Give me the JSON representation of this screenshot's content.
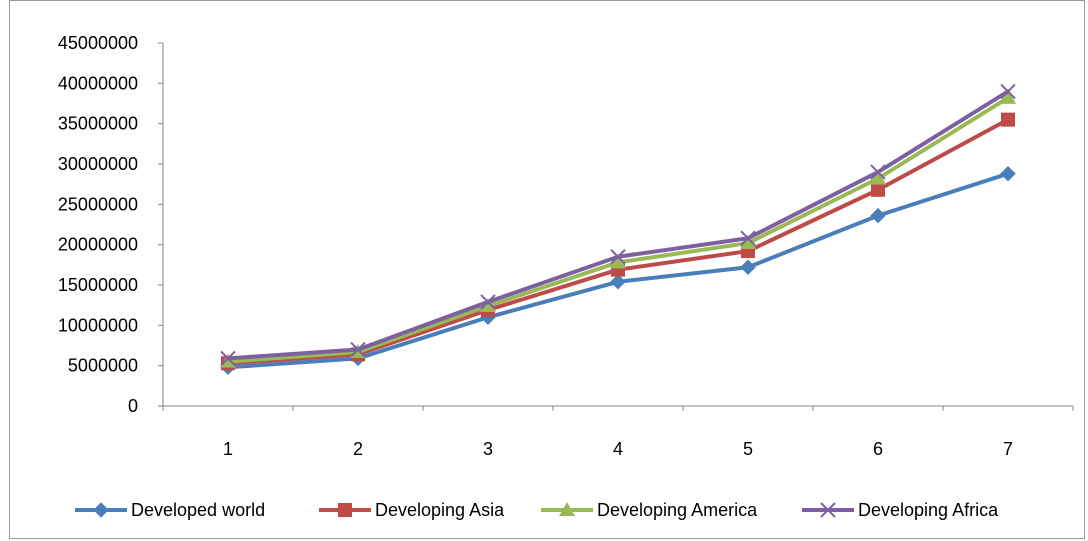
{
  "chart_data": {
    "type": "line",
    "categories": [
      "1",
      "2",
      "3",
      "4",
      "5",
      "6",
      "7"
    ],
    "ylim": [
      0,
      45000000
    ],
    "yticks": [
      "0",
      "5000000",
      "10000000",
      "15000000",
      "20000000",
      "25000000",
      "30000000",
      "35000000",
      "40000000",
      "45000000"
    ],
    "grid": false,
    "legend_position": "bottom",
    "series": [
      {
        "name": "Developed world",
        "color": "#4a7ebb",
        "marker": "diamond",
        "values": [
          4800000,
          5900000,
          11000000,
          15400000,
          17200000,
          23600000,
          28800000
        ]
      },
      {
        "name": "Developing Asia",
        "color": "#be4b48",
        "marker": "square",
        "values": [
          5300000,
          6400000,
          11900000,
          16900000,
          19200000,
          26800000,
          35500000
        ]
      },
      {
        "name": "Developing America",
        "color": "#98b954",
        "marker": "triangle",
        "values": [
          5500000,
          6700000,
          12400000,
          17800000,
          20200000,
          28200000,
          38200000
        ]
      },
      {
        "name": "Developing Africa",
        "color": "#7d60a0",
        "marker": "x",
        "values": [
          5900000,
          7000000,
          12900000,
          18500000,
          20800000,
          29000000,
          39000000
        ]
      }
    ]
  }
}
